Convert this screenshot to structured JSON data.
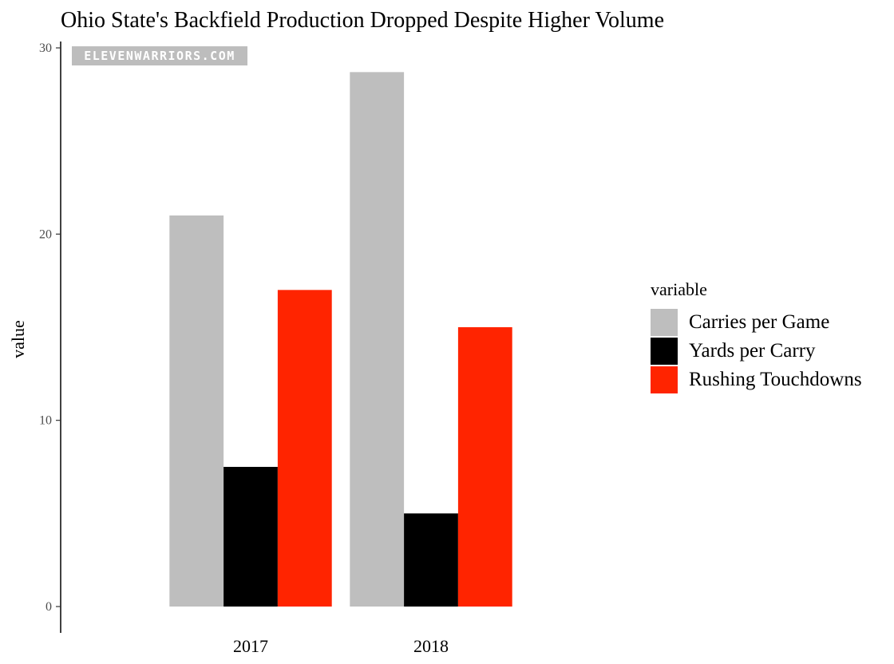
{
  "chart_data": {
    "type": "bar",
    "title": "Ohio State's Backfield Production Dropped Despite Higher Volume",
    "xlabel": "",
    "ylabel": "value",
    "categories": [
      "2017",
      "2018"
    ],
    "series": [
      {
        "name": "Carries per Game",
        "color": "#bebebe",
        "values": [
          21.0,
          28.7
        ]
      },
      {
        "name": "Yards per Carry",
        "color": "#000000",
        "values": [
          7.5,
          5.0
        ]
      },
      {
        "name": "Rushing Touchdowns",
        "color": "#ff2400",
        "values": [
          17,
          15
        ]
      }
    ],
    "ylim": [
      0,
      30
    ],
    "yticks": [
      0,
      10,
      20,
      30
    ],
    "grid": false,
    "legend": {
      "title": "variable",
      "position": "right"
    },
    "watermark": "ELEVENWARRIORS.COM"
  }
}
